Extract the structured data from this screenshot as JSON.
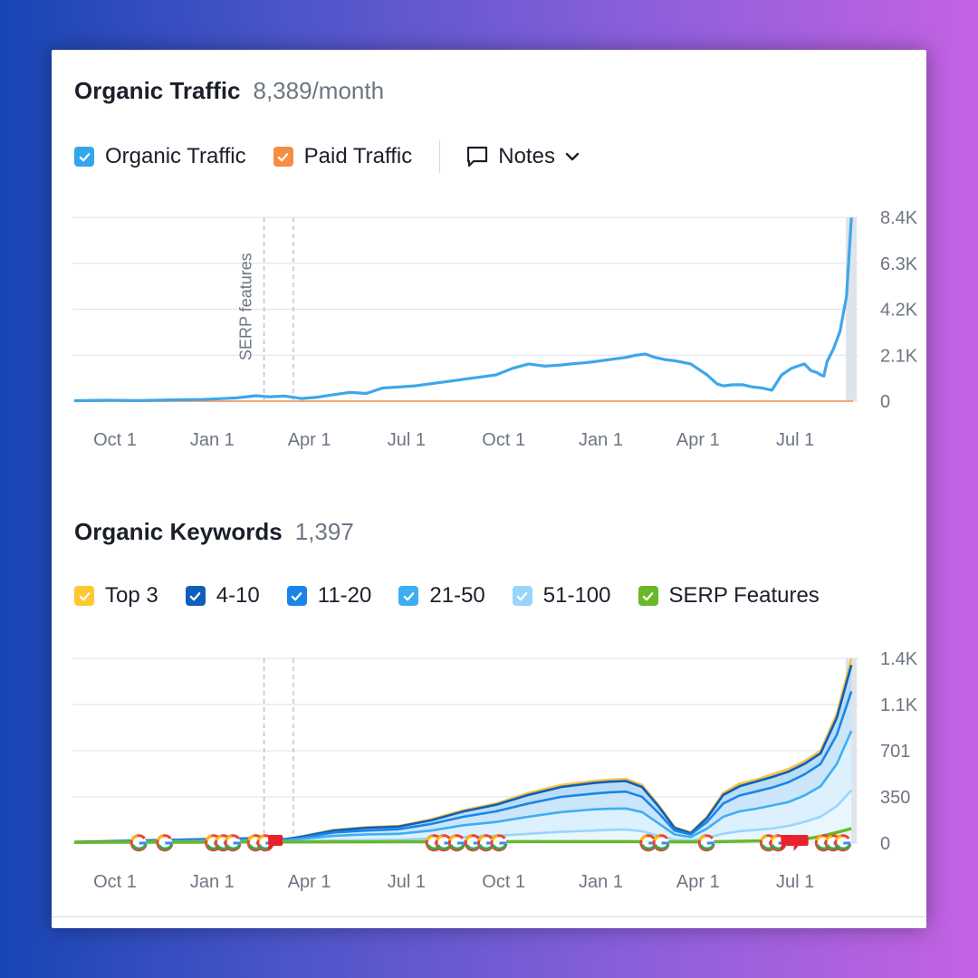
{
  "traffic_section": {
    "title": "Organic Traffic",
    "value": "8,389/month",
    "legend": [
      {
        "label": "Organic Traffic",
        "color": "#33a6ec"
      },
      {
        "label": "Paid Traffic",
        "color": "#f58d42"
      }
    ],
    "notes_label": "Notes"
  },
  "keywords_section": {
    "title": "Organic Keywords",
    "value": "1,397",
    "legend": [
      {
        "label": "Top 3",
        "color": "#ffc832"
      },
      {
        "label": "4-10",
        "color": "#0d5fba"
      },
      {
        "label": "11-20",
        "color": "#1a85e6"
      },
      {
        "label": "21-50",
        "color": "#3eaef2"
      },
      {
        "label": "51-100",
        "color": "#99d4fa"
      },
      {
        "label": "SERP Features",
        "color": "#67b92a"
      }
    ]
  },
  "chart_data": [
    {
      "type": "line",
      "title": "Organic Traffic",
      "x_labels": [
        "Oct 1",
        "Jan 1",
        "Apr 1",
        "Jul 1",
        "Oct 1",
        "Jan 1",
        "Apr 1",
        "Jul 1"
      ],
      "y_ticks": [
        "0",
        "2.1K",
        "4.2K",
        "6.3K",
        "8.4K"
      ],
      "ylim": [
        0,
        8400
      ],
      "xlim": [
        0,
        24
      ],
      "annotation": "SERP features",
      "markers_x": [
        5.85,
        6.75
      ],
      "series": [
        {
          "name": "Organic Traffic",
          "color": "#3da7ea",
          "x": [
            0,
            1,
            2,
            3,
            4,
            5,
            5.6,
            6,
            6.5,
            7,
            7.5,
            8,
            8.5,
            9,
            9.5,
            10,
            10.5,
            11,
            11.5,
            12,
            12.5,
            13,
            13.5,
            14,
            14.5,
            15,
            15.3,
            15.7,
            16,
            16.5,
            17,
            17.3,
            17.6,
            17.9,
            18.2,
            18.5,
            19,
            19.5,
            19.8,
            20,
            20.3,
            20.6,
            20.9,
            21.2,
            21.5,
            21.8,
            22.1,
            22.3,
            22.5,
            22.7,
            22.9,
            23.0,
            23.1,
            23.2,
            23.4,
            23.6,
            23.8,
            23.95
          ],
          "y": [
            20,
            40,
            30,
            60,
            80,
            150,
            250,
            200,
            230,
            120,
            180,
            300,
            400,
            350,
            600,
            650,
            700,
            800,
            900,
            1000,
            1100,
            1200,
            1500,
            1700,
            1600,
            1650,
            1700,
            1750,
            1800,
            1900,
            2000,
            2100,
            2150,
            2000,
            1900,
            1850,
            1700,
            1200,
            800,
            700,
            750,
            750,
            650,
            600,
            500,
            1200,
            1500,
            1600,
            1700,
            1400,
            1300,
            1200,
            1150,
            1800,
            2400,
            3200,
            4800,
            8389
          ]
        },
        {
          "name": "Paid Traffic",
          "color": "#f5a57b",
          "x": [
            0,
            24
          ],
          "y": [
            0,
            0
          ]
        }
      ]
    },
    {
      "type": "area",
      "title": "Organic Keywords",
      "x_labels": [
        "Oct 1",
        "Jan 1",
        "Apr 1",
        "Jul 1",
        "Oct 1",
        "Jan 1",
        "Apr 1",
        "Jul 1"
      ],
      "y_ticks": [
        "0",
        "350",
        "701",
        "1.1K",
        "1.4K"
      ],
      "ylim": [
        0,
        1400
      ],
      "xlim": [
        0,
        24
      ],
      "markers_x": [
        5.85,
        6.75
      ],
      "x": [
        0,
        1,
        2,
        3,
        4,
        5,
        6,
        6.5,
        7,
        8,
        9,
        10,
        11,
        12,
        13,
        14,
        15,
        16,
        16.5,
        17,
        17.5,
        18,
        18.5,
        19,
        19.5,
        20,
        20.5,
        21,
        21.5,
        22,
        22.5,
        23,
        23.5,
        23.95
      ],
      "series": [
        {
          "name": "Top 3",
          "color": "#f6c343",
          "values": [
            10,
            15,
            20,
            25,
            30,
            35,
            40,
            30,
            50,
            100,
            120,
            130,
            180,
            250,
            300,
            380,
            440,
            470,
            480,
            485,
            440,
            290,
            120,
            80,
            200,
            380,
            450,
            480,
            520,
            560,
            620,
            700,
            980,
            1397
          ]
        },
        {
          "name": "4-10",
          "color": "#0d5fba",
          "values": [
            9,
            14,
            19,
            24,
            29,
            33,
            38,
            29,
            48,
            95,
            115,
            125,
            172,
            240,
            290,
            365,
            425,
            455,
            465,
            470,
            425,
            280,
            115,
            75,
            190,
            365,
            430,
            465,
            500,
            540,
            600,
            680,
            950,
            1350
          ]
        },
        {
          "name": "11-20",
          "color": "#1a85e6",
          "values": [
            8,
            12,
            16,
            20,
            24,
            28,
            32,
            25,
            40,
            80,
            95,
            105,
            145,
            200,
            240,
            300,
            350,
            375,
            385,
            390,
            350,
            230,
            95,
            65,
            160,
            300,
            360,
            390,
            420,
            460,
            520,
            600,
            820,
            1150
          ]
        },
        {
          "name": "21-50",
          "color": "#3eaef2",
          "values": [
            6,
            9,
            12,
            15,
            18,
            21,
            24,
            19,
            30,
            55,
            65,
            70,
            95,
            135,
            160,
            200,
            235,
            255,
            260,
            262,
            235,
            150,
            65,
            45,
            110,
            200,
            240,
            260,
            285,
            310,
            360,
            430,
            600,
            850
          ]
        },
        {
          "name": "51-100",
          "color": "#99d4fa",
          "values": [
            3,
            5,
            6,
            8,
            9,
            11,
            12,
            10,
            14,
            20,
            22,
            25,
            35,
            45,
            55,
            70,
            85,
            95,
            100,
            102,
            90,
            55,
            25,
            20,
            40,
            70,
            90,
            100,
            110,
            130,
            160,
            200,
            280,
            400
          ]
        },
        {
          "name": "SERP Features",
          "color": "#67b92a",
          "values": [
            5,
            6,
            6,
            7,
            7,
            8,
            8,
            8,
            8,
            9,
            9,
            10,
            10,
            11,
            11,
            12,
            12,
            12,
            12,
            12,
            11,
            10,
            9,
            9,
            10,
            12,
            14,
            16,
            18,
            20,
            30,
            50,
            80,
            110
          ]
        }
      ],
      "serp_icons": [
        {
          "x": 2.0,
          "kind": "google"
        },
        {
          "x": 2.8,
          "kind": "google"
        },
        {
          "x": 4.3,
          "kind": "google"
        },
        {
          "x": 4.6,
          "kind": "google"
        },
        {
          "x": 4.9,
          "kind": "google"
        },
        {
          "x": 5.6,
          "kind": "google"
        },
        {
          "x": 5.9,
          "kind": "google"
        },
        {
          "x": 6.2,
          "kind": "flag"
        },
        {
          "x": 11.1,
          "kind": "google"
        },
        {
          "x": 11.4,
          "kind": "google"
        },
        {
          "x": 11.8,
          "kind": "google"
        },
        {
          "x": 12.3,
          "kind": "google"
        },
        {
          "x": 12.7,
          "kind": "google"
        },
        {
          "x": 13.1,
          "kind": "google"
        },
        {
          "x": 17.7,
          "kind": "google"
        },
        {
          "x": 18.1,
          "kind": "google"
        },
        {
          "x": 19.5,
          "kind": "google"
        },
        {
          "x": 21.4,
          "kind": "google"
        },
        {
          "x": 21.7,
          "kind": "google"
        },
        {
          "x": 22.0,
          "kind": "flag"
        },
        {
          "x": 22.4,
          "kind": "flag"
        },
        {
          "x": 23.1,
          "kind": "google"
        },
        {
          "x": 23.4,
          "kind": "google"
        },
        {
          "x": 23.7,
          "kind": "google"
        }
      ]
    }
  ]
}
